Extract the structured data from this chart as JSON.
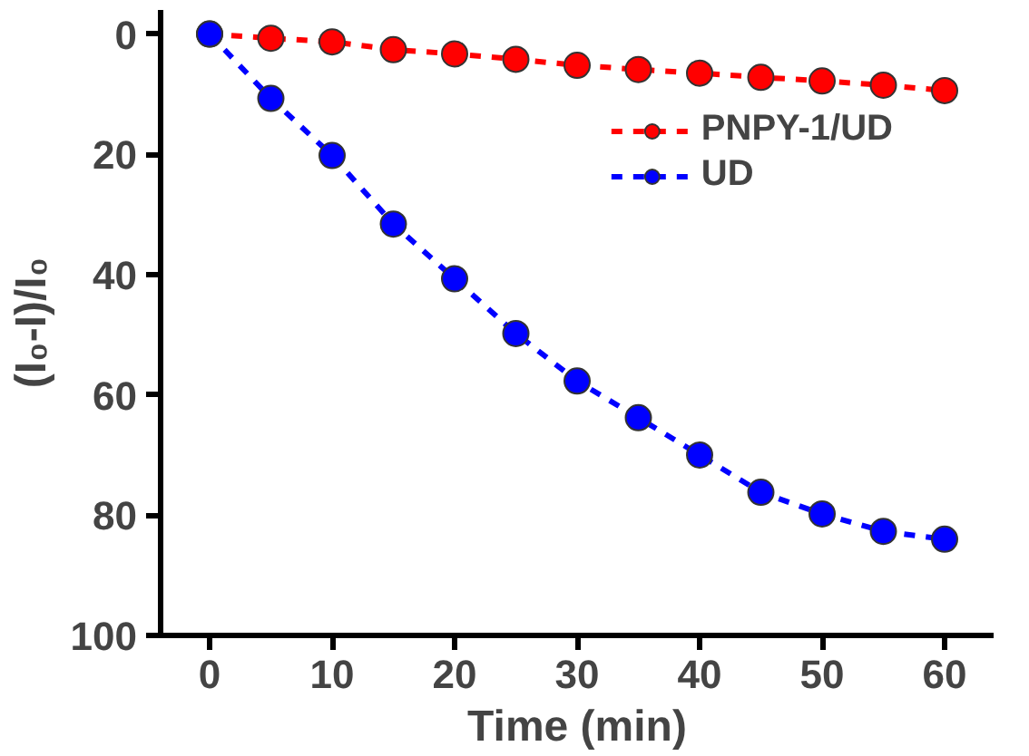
{
  "chart_data": {
    "type": "line",
    "xlabel": "Time (min)",
    "ylabel": "(I₀-I)/I₀",
    "x": [
      0,
      5,
      10,
      15,
      20,
      25,
      30,
      35,
      40,
      45,
      50,
      55,
      60
    ],
    "series": [
      {
        "name": "PNPY-1/UD",
        "color": "#ff0000",
        "values": [
          0,
          0.7,
          1.3,
          2.6,
          3.3,
          4.2,
          5.2,
          5.9,
          6.5,
          7.2,
          7.8,
          8.5,
          9.4
        ]
      },
      {
        "name": "UD",
        "color": "#0000ff",
        "values": [
          0,
          10.7,
          20.2,
          31.6,
          40.7,
          49.8,
          57.7,
          63.8,
          70,
          76.2,
          79.8,
          82.7,
          84
        ]
      }
    ],
    "xlim": [
      -4,
      64
    ],
    "ylim": [
      100,
      -4
    ],
    "xticks": [
      0,
      10,
      20,
      30,
      40,
      50,
      60
    ],
    "yticks": [
      0,
      20,
      40,
      60,
      80,
      100
    ],
    "grid": false,
    "legend": "top right",
    "marker": "circle",
    "line_style": "dashed"
  }
}
